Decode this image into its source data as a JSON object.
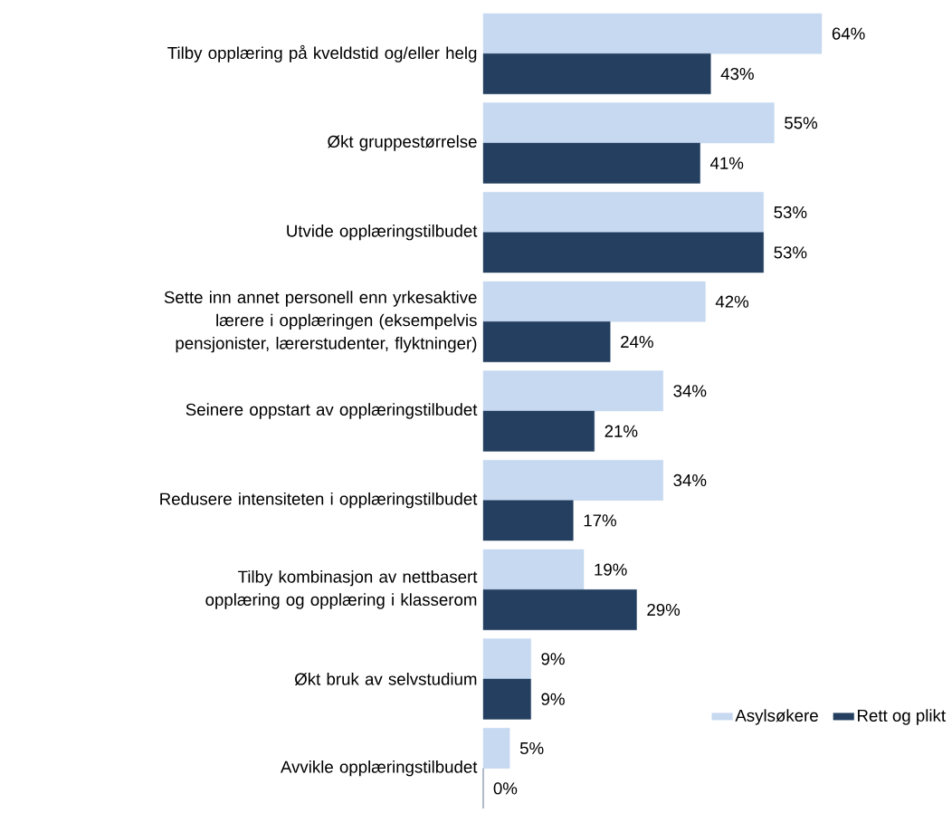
{
  "chart_data": {
    "type": "bar",
    "orientation": "horizontal",
    "legend": "bottom right",
    "categories": [
      "Tilby opplæring på kveldstid og/eller helg",
      "Økt gruppestørrelse",
      "Utvide opplæringstilbudet",
      "Sette inn annet personell enn yrkesaktive lærere i opplæringen (eksempelvis pensjonister, lærerstudenter, flyktninger)",
      "Seinere oppstart av opplæringstilbudet",
      "Redusere intensiteten i opplæringstilbudet",
      "Tilby kombinasjon av nettbasert opplæring og opplæring i klasserom",
      "Økt bruk av selvstudium",
      "Avvikle opplæringstilbudet"
    ],
    "series": [
      {
        "name": "Asylsøkere",
        "color": "#c6d9f0",
        "values": [
          64,
          55,
          53,
          42,
          34,
          34,
          19,
          9,
          5
        ],
        "value_labels": [
          "64%",
          "55%",
          "53%",
          "42%",
          "34%",
          "34%",
          "19%",
          "9%",
          "5%"
        ]
      },
      {
        "name": "Rett og plikt",
        "color": "#243f60",
        "values": [
          43,
          41,
          53,
          24,
          21,
          17,
          29,
          9,
          0
        ],
        "value_labels": [
          "43%",
          "41%",
          "53%",
          "24%",
          "21%",
          "17%",
          "29%",
          "9%",
          "0%"
        ]
      }
    ]
  }
}
